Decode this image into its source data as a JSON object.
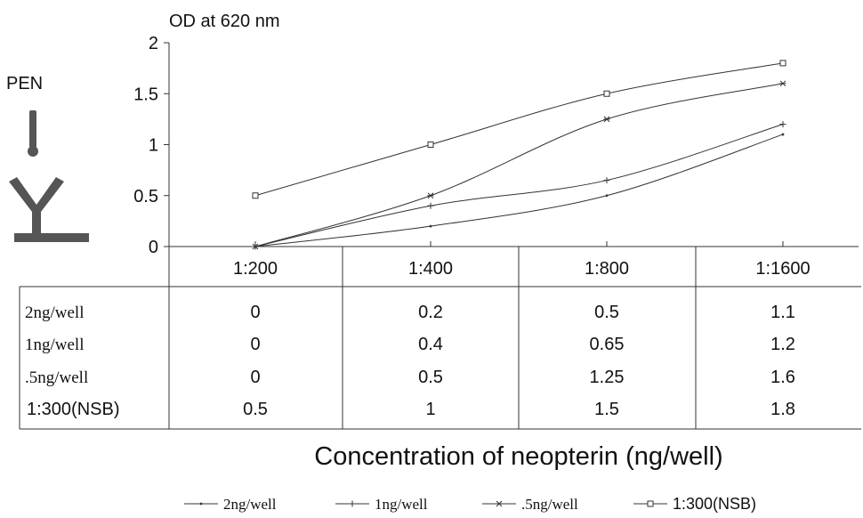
{
  "chart_data": {
    "type": "line",
    "title": "",
    "ylabel": "OD at 620 nm",
    "xlabel": "Concentration of neopterin (ng/well)",
    "side_label": "PEN",
    "categories": [
      "1:200",
      "1:400",
      "1:800",
      "1:1600"
    ],
    "ylim": [
      0,
      2
    ],
    "yticks": [
      "0",
      "0.5",
      "1",
      "1.5",
      "2"
    ],
    "grid": false,
    "legend_position": "bottom",
    "series": [
      {
        "name": "2ng/well",
        "values": [
          0,
          0.2,
          0.5,
          1.1
        ],
        "value_labels": [
          "0",
          "0.2",
          "0.5",
          "1.1"
        ],
        "marker": "dot"
      },
      {
        "name": "1ng/well",
        "values": [
          0,
          0.4,
          0.65,
          1.2
        ],
        "value_labels": [
          "0",
          "0.4",
          "0.65",
          "1.2"
        ],
        "marker": "plus"
      },
      {
        "name": ".5ng/well",
        "values": [
          0,
          0.5,
          1.25,
          1.6
        ],
        "value_labels": [
          "0",
          "0.5",
          "1.25",
          "1.6"
        ],
        "marker": "star"
      },
      {
        "name": "1:300(NSB)",
        "values": [
          0.5,
          1,
          1.5,
          1.8
        ],
        "value_labels": [
          "0.5",
          "1",
          "1.5",
          "1.8"
        ],
        "marker": "square"
      }
    ],
    "colors": {
      "line": "#333333",
      "text": "#111111",
      "icon": "#555555"
    }
  }
}
